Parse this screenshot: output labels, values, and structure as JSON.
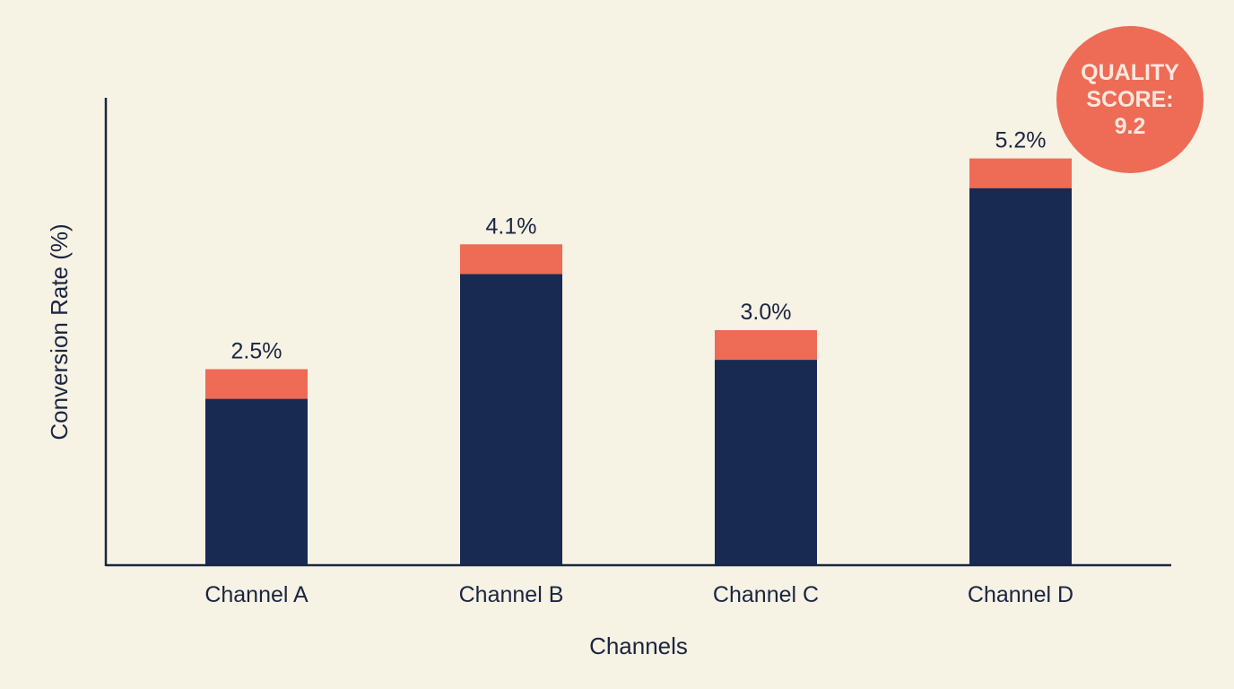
{
  "chart_data": {
    "type": "bar",
    "categories": [
      "Channel A",
      "Channel B",
      "Channel C",
      "Channel D"
    ],
    "values": [
      2.5,
      4.1,
      3.0,
      5.2
    ],
    "value_labels": [
      "2.5%",
      "4.1%",
      "3.0%",
      "5.2%"
    ],
    "xlabel": "Channels",
    "ylabel": "Conversion Rate (%)",
    "ylim": [
      0,
      5.6
    ],
    "grid": false,
    "y_ticks_shown": false,
    "colors": {
      "bar": "#182a52",
      "bar_cap": "#ee6b56",
      "axis": "#1b2541",
      "background": "#f6f2e4"
    }
  },
  "badge": {
    "text": "QUALITY SCORE: 9.2",
    "color": "#ee6b56"
  }
}
